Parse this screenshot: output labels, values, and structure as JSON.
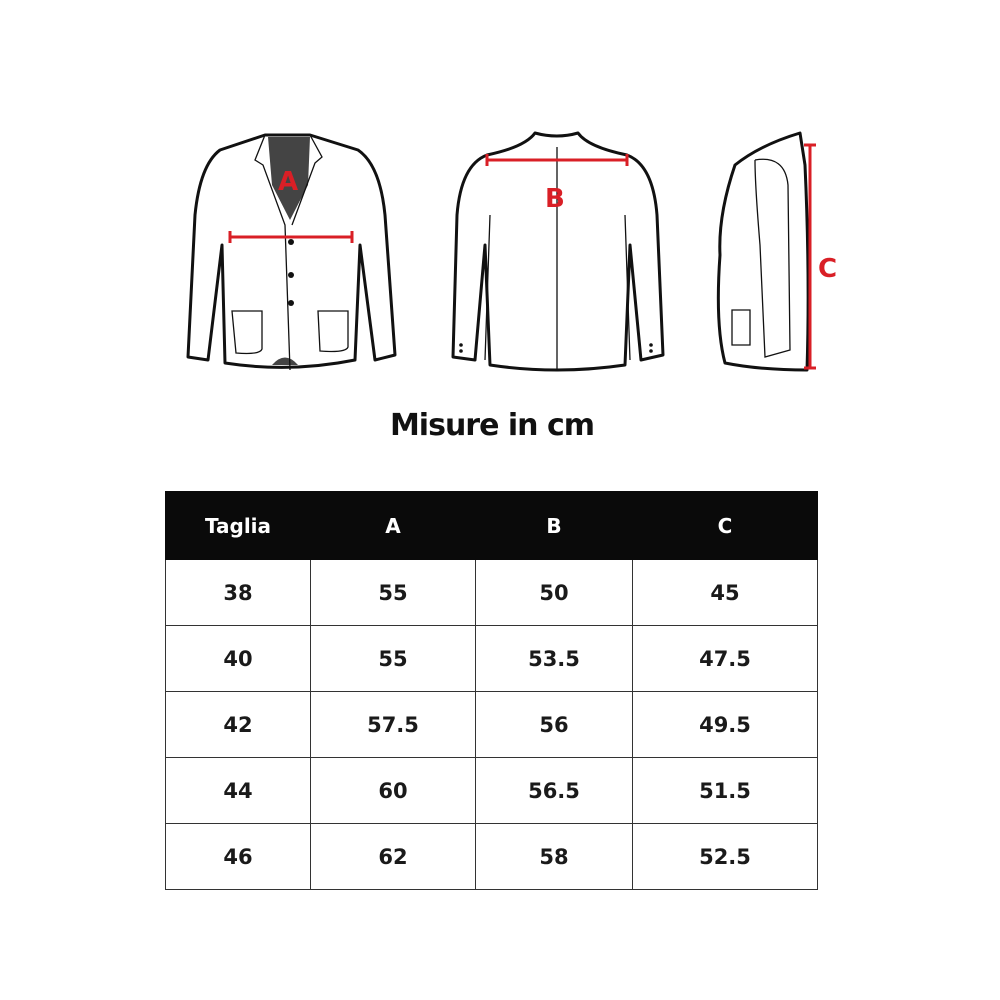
{
  "labels": {
    "a": "A",
    "b": "B",
    "c": "C"
  },
  "title": "Misure in cm",
  "table": {
    "headers": [
      "Taglia",
      "A",
      "B",
      "C"
    ],
    "rows": [
      [
        "38",
        "55",
        "50",
        "45"
      ],
      [
        "40",
        "55",
        "53.5",
        "47.5"
      ],
      [
        "42",
        "57.5",
        "56",
        "49.5"
      ],
      [
        "44",
        "60",
        "56.5",
        "51.5"
      ],
      [
        "46",
        "62",
        "58",
        "52.5"
      ]
    ]
  },
  "colors": {
    "measure": "#d91f26",
    "header_bg": "#0a0a0a"
  }
}
